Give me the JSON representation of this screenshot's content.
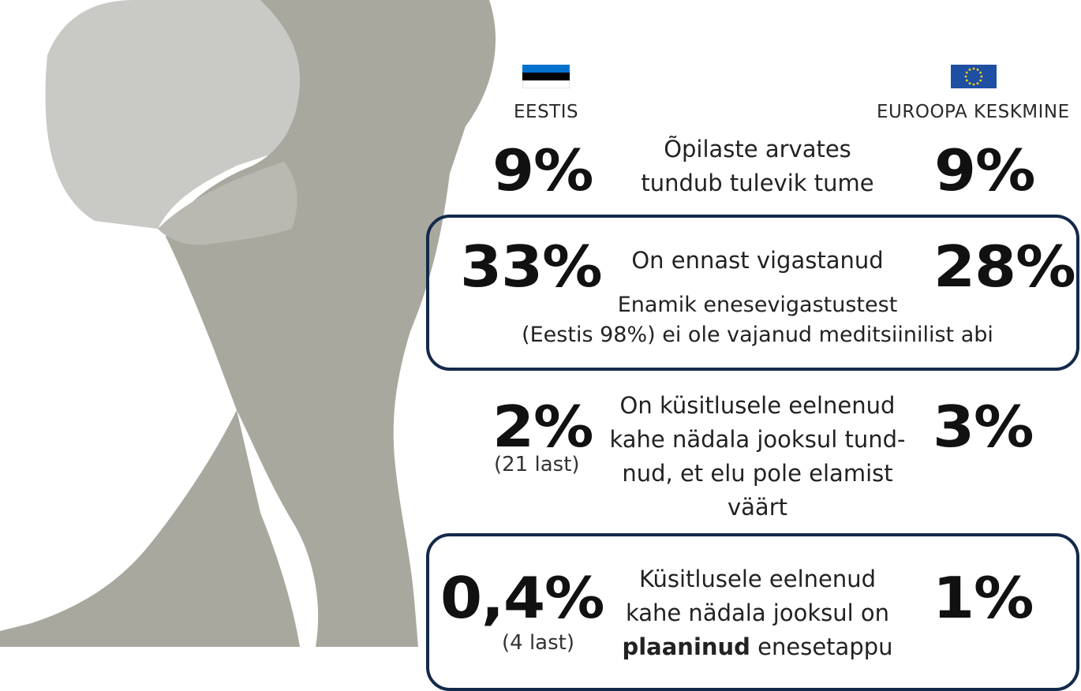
{
  "columns": {
    "left_label": "EESTIS",
    "right_label": "EUROOPA KESKMINE",
    "left_flag": "estonia-flag",
    "right_flag": "eu-flag"
  },
  "rows": [
    {
      "left_value": "9%",
      "right_value": "9%",
      "text_lines": [
        "Õpilaste arvates",
        "tundub tulevik tume"
      ]
    },
    {
      "left_value": "33%",
      "right_value": "28%",
      "text_lines": [
        "On ennast vigastanud"
      ],
      "sub_lines": [
        "Enamik enesevigastustest",
        "(Eestis 98%) ei ole vajanud meditsiinilist  abi"
      ]
    },
    {
      "left_value": "2%",
      "left_note": "(21 last)",
      "right_value": "3%",
      "text_lines": [
        "On küsitlusele eelnenud",
        "kahe nädala jooksul tund-",
        "nud, et elu pole elamist",
        "väärt"
      ]
    },
    {
      "left_value": "0,4%",
      "left_note": "(4 last)",
      "right_value": "1%",
      "text_lines": [
        "Küsitlusele eelnenud",
        "kahe nädala jooksul on"
      ],
      "text_bold": "plaaninud",
      "text_after_bold": " enesetappu"
    }
  ],
  "colors": {
    "box_border": "#13294b",
    "silhouette_light": "#c9c9c5",
    "silhouette_dark": "#a8a89f",
    "flag_blue": "#0072ce",
    "eu_blue": "#1f4fa3",
    "eu_star": "#ffd500"
  }
}
